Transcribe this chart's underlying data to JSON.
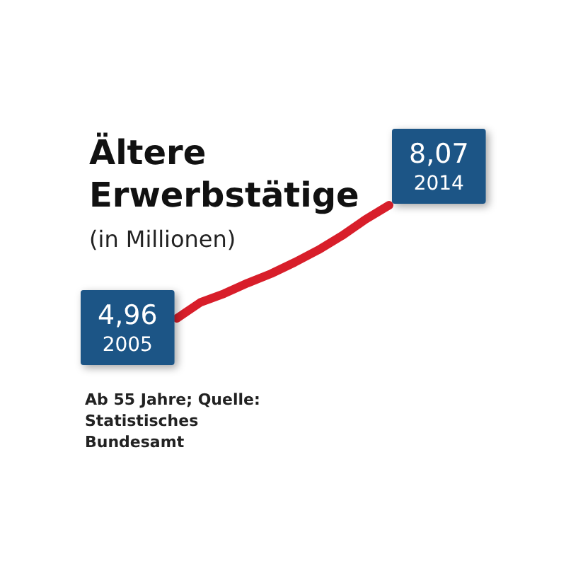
{
  "chart_data": {
    "type": "line",
    "title": "Ältere\nErwerbstätige",
    "subtitle": "(in Millionen)",
    "categories": [
      null,
      null,
      null,
      null,
      null,
      null,
      null,
      null,
      null,
      null
    ],
    "series": [
      {
        "color": "#d81e2a",
        "values": [
          4.96,
          5.4,
          5.64,
          5.93,
          6.19,
          6.5,
          6.84,
          7.23,
          7.68,
          8.07
        ],
        "value_labels": [
          "4,96\n2005",
          null,
          null,
          null,
          null,
          null,
          null,
          null,
          null,
          "8,07\n2014"
        ]
      }
    ],
    "tick_labels": false,
    "grid": false,
    "marker": "none",
    "line_style": "solid",
    "annotations": [
      "Ab 55 Jahre; Quelle: Statistisches Bundesamt"
    ]
  }
}
